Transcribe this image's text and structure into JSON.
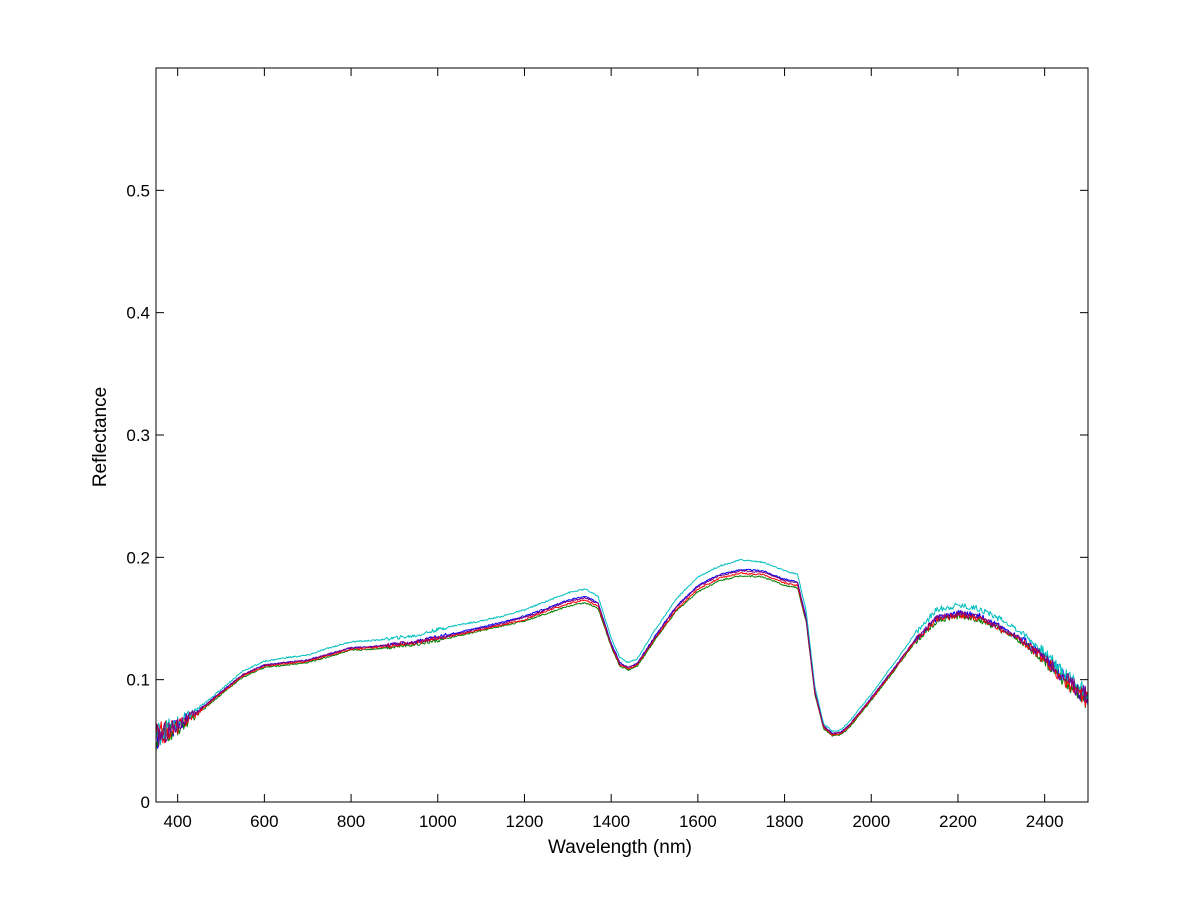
{
  "chart_data": {
    "type": "line",
    "title": "",
    "xlabel": "Wavelength (nm)",
    "ylabel": "Reflectance",
    "xlim": [
      350,
      2500
    ],
    "ylim": [
      0,
      0.6
    ],
    "xticks": [
      400,
      600,
      800,
      1000,
      1200,
      1400,
      1600,
      1800,
      2000,
      2200,
      2400
    ],
    "yticks": [
      0,
      0.1,
      0.2,
      0.3,
      0.4,
      0.5
    ],
    "xtick_labels": [
      "400",
      "600",
      "800",
      "1000",
      "1200",
      "1400",
      "1600",
      "1800",
      "2000",
      "2200",
      "2400"
    ],
    "ytick_labels": [
      "0",
      "0.1",
      "0.2",
      "0.3",
      "0.4",
      "0.5"
    ],
    "grid": false,
    "legend": "none",
    "x": [
      350,
      400,
      450,
      500,
      550,
      600,
      650,
      700,
      750,
      800,
      850,
      900,
      950,
      1000,
      1050,
      1100,
      1150,
      1200,
      1250,
      1300,
      1340,
      1370,
      1400,
      1420,
      1440,
      1460,
      1500,
      1550,
      1600,
      1650,
      1700,
      1750,
      1800,
      1830,
      1850,
      1870,
      1890,
      1910,
      1930,
      1950,
      2000,
      2050,
      2100,
      2150,
      2200,
      2250,
      2300,
      2350,
      2400,
      2450,
      2500
    ],
    "series": [
      {
        "color": "#0000ff",
        "values": [
          0.052,
          0.063,
          0.075,
          0.09,
          0.104,
          0.112,
          0.114,
          0.116,
          0.121,
          0.126,
          0.127,
          0.129,
          0.131,
          0.135,
          0.139,
          0.143,
          0.147,
          0.152,
          0.158,
          0.165,
          0.168,
          0.163,
          0.13,
          0.114,
          0.11,
          0.113,
          0.135,
          0.16,
          0.177,
          0.186,
          0.19,
          0.189,
          0.182,
          0.18,
          0.15,
          0.09,
          0.062,
          0.056,
          0.057,
          0.063,
          0.085,
          0.108,
          0.132,
          0.15,
          0.155,
          0.152,
          0.143,
          0.133,
          0.118,
          0.1,
          0.085
        ]
      },
      {
        "color": "#008000",
        "values": [
          0.05,
          0.06,
          0.073,
          0.088,
          0.102,
          0.11,
          0.112,
          0.114,
          0.119,
          0.124,
          0.125,
          0.127,
          0.129,
          0.132,
          0.136,
          0.14,
          0.144,
          0.148,
          0.154,
          0.16,
          0.163,
          0.158,
          0.127,
          0.111,
          0.108,
          0.111,
          0.132,
          0.156,
          0.172,
          0.181,
          0.185,
          0.184,
          0.177,
          0.175,
          0.147,
          0.088,
          0.06,
          0.054,
          0.055,
          0.061,
          0.083,
          0.106,
          0.13,
          0.148,
          0.152,
          0.149,
          0.14,
          0.13,
          0.115,
          0.098,
          0.08
        ]
      },
      {
        "color": "#ff0000",
        "values": [
          0.054,
          0.062,
          0.074,
          0.089,
          0.103,
          0.111,
          0.113,
          0.115,
          0.12,
          0.125,
          0.126,
          0.128,
          0.13,
          0.134,
          0.137,
          0.141,
          0.145,
          0.149,
          0.156,
          0.162,
          0.165,
          0.16,
          0.128,
          0.112,
          0.109,
          0.112,
          0.133,
          0.157,
          0.174,
          0.183,
          0.187,
          0.186,
          0.179,
          0.177,
          0.148,
          0.089,
          0.061,
          0.055,
          0.056,
          0.062,
          0.084,
          0.107,
          0.131,
          0.149,
          0.153,
          0.15,
          0.141,
          0.131,
          0.116,
          0.099,
          0.082
        ]
      },
      {
        "color": "#00bfbf",
        "values": [
          0.055,
          0.064,
          0.077,
          0.092,
          0.107,
          0.115,
          0.118,
          0.12,
          0.126,
          0.131,
          0.132,
          0.134,
          0.136,
          0.141,
          0.145,
          0.148,
          0.152,
          0.157,
          0.164,
          0.171,
          0.174,
          0.168,
          0.134,
          0.118,
          0.114,
          0.117,
          0.14,
          0.166,
          0.184,
          0.193,
          0.198,
          0.196,
          0.189,
          0.186,
          0.156,
          0.094,
          0.064,
          0.058,
          0.059,
          0.066,
          0.088,
          0.112,
          0.137,
          0.157,
          0.161,
          0.158,
          0.149,
          0.138,
          0.122,
          0.104,
          0.09
        ]
      },
      {
        "color": "#800080",
        "values": [
          0.053,
          0.063,
          0.075,
          0.09,
          0.104,
          0.112,
          0.114,
          0.116,
          0.121,
          0.126,
          0.127,
          0.129,
          0.131,
          0.134,
          0.138,
          0.142,
          0.146,
          0.151,
          0.157,
          0.164,
          0.167,
          0.162,
          0.129,
          0.113,
          0.11,
          0.113,
          0.134,
          0.159,
          0.176,
          0.185,
          0.189,
          0.188,
          0.181,
          0.179,
          0.149,
          0.09,
          0.062,
          0.056,
          0.057,
          0.063,
          0.085,
          0.108,
          0.132,
          0.15,
          0.154,
          0.151,
          0.142,
          0.132,
          0.117,
          0.1,
          0.086
        ]
      }
    ]
  }
}
